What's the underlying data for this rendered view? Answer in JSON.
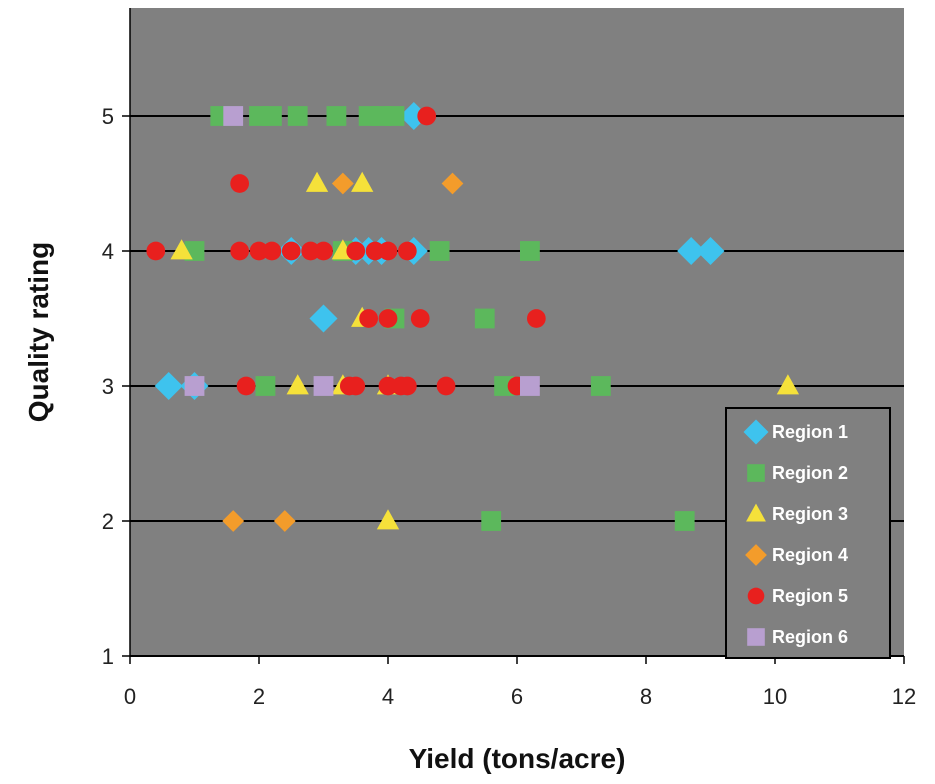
{
  "chart_data": {
    "type": "scatter",
    "xlabel": "Yield (tons/acre)",
    "ylabel": "Quality rating",
    "xlim": [
      0,
      12
    ],
    "ylim": [
      1,
      5.8
    ],
    "x_ticks": [
      "0",
      "2",
      "4",
      "6",
      "8",
      "10",
      "12"
    ],
    "y_ticks": [
      "1",
      "2",
      "3",
      "4",
      "5"
    ],
    "grid": "horizontal",
    "legend_position": "bottom-right",
    "plot_background": "#808080",
    "series": [
      {
        "name": "Region 1",
        "marker": "diamond",
        "color": "#3EC3EE",
        "points": [
          [
            0.6,
            3
          ],
          [
            1.0,
            3
          ],
          [
            4.4,
            5
          ],
          [
            2.5,
            4
          ],
          [
            3.5,
            4
          ],
          [
            3.7,
            4
          ],
          [
            3.9,
            4
          ],
          [
            4.4,
            4
          ],
          [
            8.7,
            4
          ],
          [
            9.0,
            4
          ],
          [
            3.0,
            3.5
          ]
        ]
      },
      {
        "name": "Region 2",
        "marker": "square",
        "color": "#5CB85C",
        "points": [
          [
            1.4,
            5
          ],
          [
            2.0,
            5
          ],
          [
            2.2,
            5
          ],
          [
            2.6,
            5
          ],
          [
            3.2,
            5
          ],
          [
            3.7,
            5
          ],
          [
            3.9,
            5
          ],
          [
            4.1,
            5
          ],
          [
            1.0,
            4
          ],
          [
            3.3,
            4
          ],
          [
            4.8,
            4
          ],
          [
            6.2,
            4
          ],
          [
            4.1,
            3.5
          ],
          [
            5.5,
            3.5
          ],
          [
            2.1,
            3
          ],
          [
            5.8,
            3
          ],
          [
            7.3,
            3
          ],
          [
            5.6,
            2
          ],
          [
            8.6,
            2
          ]
        ]
      },
      {
        "name": "Region 3",
        "marker": "triangle",
        "color": "#F5E13A",
        "points": [
          [
            2.9,
            4.5
          ],
          [
            3.6,
            4.5
          ],
          [
            0.8,
            4
          ],
          [
            3.3,
            4
          ],
          [
            3.6,
            3.5
          ],
          [
            2.6,
            3
          ],
          [
            3.3,
            3
          ],
          [
            4.0,
            3
          ],
          [
            10.2,
            3
          ],
          [
            4.0,
            2
          ]
        ]
      },
      {
        "name": "Region 4",
        "marker": "diamond",
        "color": "#F39C2B",
        "points": [
          [
            3.3,
            4.5
          ],
          [
            5.0,
            4.5
          ],
          [
            1.6,
            2
          ],
          [
            2.4,
            2
          ]
        ]
      },
      {
        "name": "Region 5",
        "marker": "circle",
        "color": "#E8201E",
        "points": [
          [
            4.6,
            5
          ],
          [
            1.7,
            4.5
          ],
          [
            0.4,
            4
          ],
          [
            1.7,
            4
          ],
          [
            2.0,
            4
          ],
          [
            2.2,
            4
          ],
          [
            2.5,
            4
          ],
          [
            2.8,
            4
          ],
          [
            3.0,
            4
          ],
          [
            3.5,
            4
          ],
          [
            3.8,
            4
          ],
          [
            4.0,
            4
          ],
          [
            4.3,
            4
          ],
          [
            3.7,
            3.5
          ],
          [
            4.0,
            3.5
          ],
          [
            4.5,
            3.5
          ],
          [
            6.3,
            3.5
          ],
          [
            1.8,
            3
          ],
          [
            3.4,
            3
          ],
          [
            3.5,
            3
          ],
          [
            4.0,
            3
          ],
          [
            4.2,
            3
          ],
          [
            4.3,
            3
          ],
          [
            4.9,
            3
          ],
          [
            6.0,
            3
          ]
        ]
      },
      {
        "name": "Region 6",
        "marker": "square",
        "color": "#B89FD0",
        "points": [
          [
            1.6,
            5
          ],
          [
            1.0,
            3
          ],
          [
            3.0,
            3
          ],
          [
            6.2,
            3
          ]
        ]
      }
    ]
  }
}
